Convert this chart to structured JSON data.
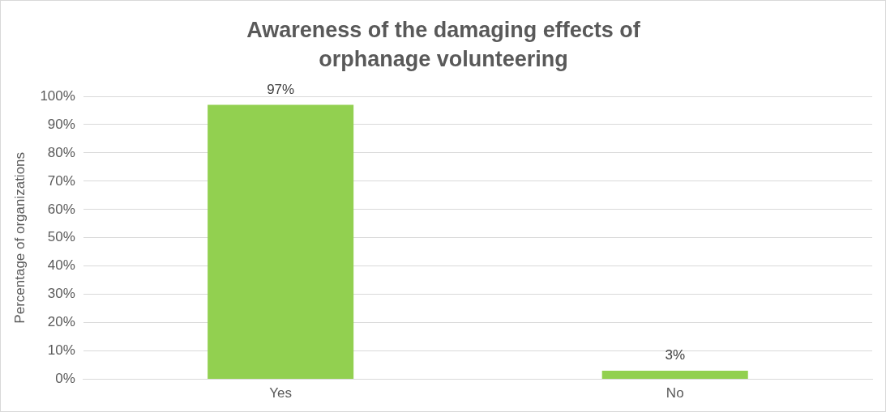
{
  "chart_data": {
    "type": "bar",
    "title": "Awareness of the damaging effects of orphanage volunteering",
    "ylabel": "Percentage of organizations",
    "categories": [
      "Yes",
      "No"
    ],
    "series": [
      {
        "color": "#92d050",
        "values": [
          97,
          3
        ],
        "value_labels": [
          "97%",
          "3%"
        ]
      }
    ],
    "ylim": [
      0,
      100
    ],
    "yticks": [
      {
        "value": 0,
        "label": "0%"
      },
      {
        "value": 10,
        "label": "10%"
      },
      {
        "value": 20,
        "label": "20%"
      },
      {
        "value": 30,
        "label": "30%"
      },
      {
        "value": 40,
        "label": "40%"
      },
      {
        "value": 50,
        "label": "50%"
      },
      {
        "value": 60,
        "label": "60%"
      },
      {
        "value": 70,
        "label": "70%"
      },
      {
        "value": 80,
        "label": "80%"
      },
      {
        "value": 90,
        "label": "90%"
      },
      {
        "value": 100,
        "label": "100%"
      }
    ],
    "grid": "y",
    "legend": false
  }
}
